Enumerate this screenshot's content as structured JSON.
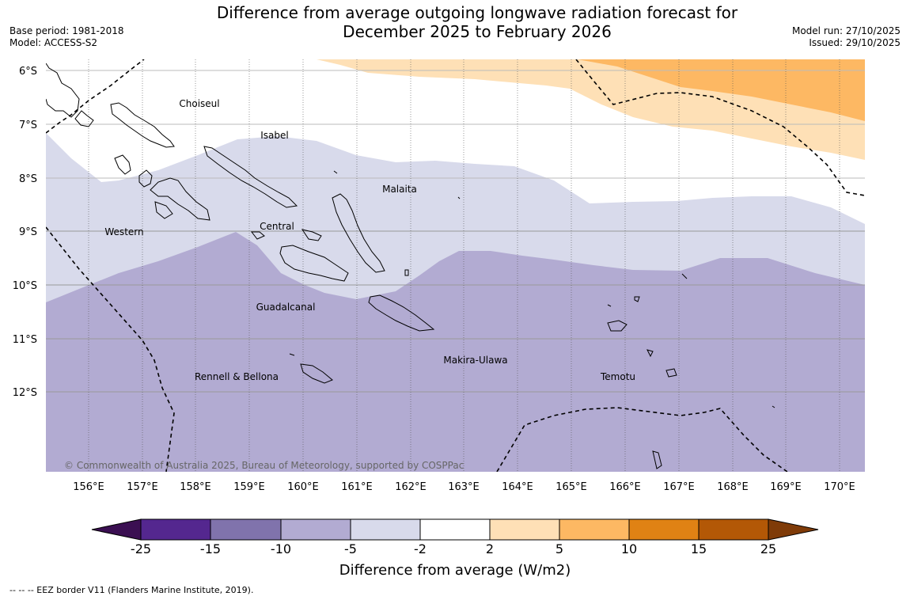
{
  "header": {
    "title_line1": "Difference from average outgoing longwave radiation forecast for",
    "title_line2": "December 2025 to February 2026",
    "base_period": "Base period: 1981-2018",
    "model": "Model: ACCESS-S2",
    "model_run": "Model run: 27/10/2025",
    "issued": "Issued: 29/10/2025"
  },
  "map": {
    "lat_labels": [
      "6°S",
      "7°S",
      "8°S",
      "9°S",
      "10°S",
      "11°S",
      "12°S"
    ],
    "lon_labels": [
      "156°E",
      "157°E",
      "158°E",
      "159°E",
      "160°E",
      "161°E",
      "162°E",
      "163°E",
      "164°E",
      "165°E",
      "166°E",
      "167°E",
      "168°E",
      "169°E",
      "170°E"
    ],
    "places": {
      "choiseul": "Choiseul",
      "isabel": "Isabel",
      "malaita": "Malaita",
      "western": "Western",
      "central": "Central",
      "guadalcanal": "Guadalcanal",
      "makira": "Makira-Ulawa",
      "rennell": "Rennell & Bellona",
      "temotu": "Temotu"
    },
    "copyright": "© Commonwealth of Australia 2025, Bureau of Meteorology, supported by COSPPac"
  },
  "colorbar": {
    "ticks": [
      "-25",
      "-15",
      "-10",
      "-5",
      "-2",
      "2",
      "5",
      "10",
      "15",
      "25"
    ],
    "colors": [
      "#3b0f52",
      "#54278f",
      "#8073ac",
      "#b2abd2",
      "#d8daeb",
      "#ffffff",
      "#fee0b6",
      "#fdb863",
      "#e08214",
      "#b35806",
      "#7f3b08"
    ],
    "title": "Difference from average (W/m2)"
  },
  "footnote": "--  --  -- EEZ border V11 (Flanders Marine Institute, 2019)."
}
